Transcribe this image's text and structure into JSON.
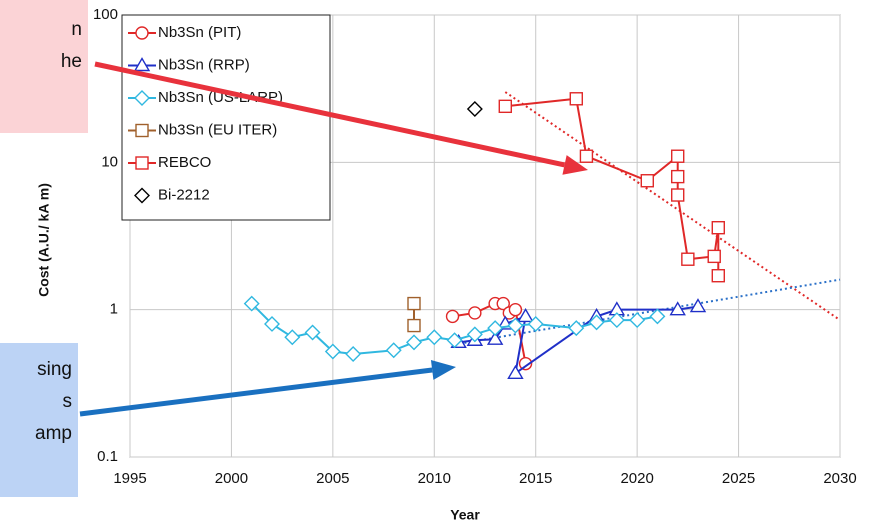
{
  "chart_data": {
    "type": "scatter",
    "x_label": "Year",
    "y_label": "Cost (A.U./ kA m)",
    "log_y": true,
    "grid": true,
    "legend": "upper left",
    "xlim": [
      1995,
      2030
    ],
    "xticks": [
      1995,
      2000,
      2005,
      2010,
      2015,
      2020,
      2025,
      2030
    ],
    "ylim": [
      0.1,
      100
    ],
    "yticks": [
      0.1,
      1,
      10,
      100
    ],
    "series": [
      {
        "name": "Nb3Sn (PIT)",
        "color": "#e02828",
        "marker": "circle",
        "x": [
          2010.9,
          2012,
          2013,
          2013.4,
          2013.7,
          2014,
          2014.5
        ],
        "values": [
          0.9,
          0.95,
          1.1,
          1.1,
          0.95,
          1.0,
          0.43
        ]
      },
      {
        "name": "Nb3Sn (RRP)",
        "color": "#2030c8",
        "marker": "triangle",
        "x": [
          2011.2,
          2012,
          2013,
          2013.5,
          2014.5,
          2014,
          2018,
          2019,
          2022,
          2023
        ],
        "values": [
          0.6,
          0.62,
          0.63,
          0.8,
          0.9,
          0.37,
          0.9,
          1.0,
          1.0,
          1.05
        ]
      },
      {
        "name": "Nb3Sn (US-LARP)",
        "color": "#30b8e0",
        "marker": "diamond",
        "x": [
          2001,
          2002,
          2003,
          2004,
          2005,
          2006,
          2008,
          2009,
          2010,
          2011,
          2012,
          2013,
          2014,
          2015,
          2017,
          2018,
          2019,
          2020,
          2021
        ],
        "values": [
          1.1,
          0.8,
          0.65,
          0.7,
          0.52,
          0.5,
          0.53,
          0.6,
          0.65,
          0.62,
          0.68,
          0.75,
          0.78,
          0.8,
          0.75,
          0.82,
          0.85,
          0.85,
          0.9
        ]
      },
      {
        "name": "Nb3Sn (EU ITER)",
        "color": "#a0602c",
        "marker": "square",
        "x": [
          2009,
          2009
        ],
        "values": [
          1.1,
          0.78
        ]
      },
      {
        "name": "REBCO",
        "color": "#e02828",
        "marker": "square",
        "x": [
          2013.5,
          2017,
          2017.5,
          2020.5,
          2022,
          2022,
          2022,
          2022.5,
          2023.8,
          2024,
          2024
        ],
        "values": [
          24,
          27,
          11,
          7.5,
          11,
          8,
          6,
          2.2,
          2.3,
          3.6,
          1.7
        ]
      },
      {
        "name": "Bi-2212",
        "color": "#000000",
        "marker": "diamond",
        "no_line": true,
        "x": [
          2012
        ],
        "values": [
          23
        ]
      }
    ],
    "trend_lines": [
      {
        "color": "#e02828",
        "x": [
          2013.5,
          2030
        ],
        "values": [
          30,
          0.85
        ]
      },
      {
        "color": "#2a70c8",
        "x": [
          2011,
          2030
        ],
        "values": [
          0.58,
          1.6
        ]
      }
    ],
    "annotations": [
      {
        "box": "pink",
        "lines": [
          "n",
          "he"
        ]
      },
      {
        "box": "blue",
        "lines": [
          "sing",
          "s",
          "amp"
        ]
      }
    ]
  }
}
